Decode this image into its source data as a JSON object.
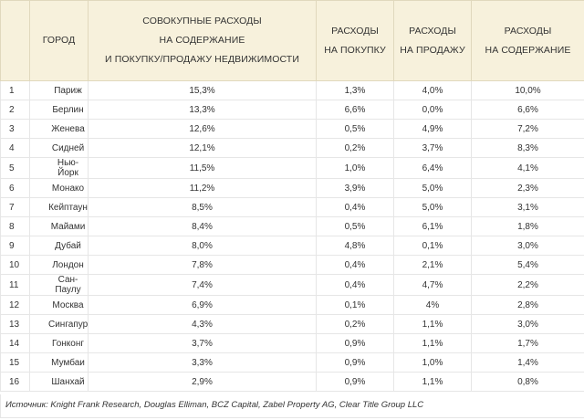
{
  "headers": {
    "num": "",
    "city": "ГОРОД",
    "total_lines": [
      "СОВОКУПНЫЕ РАСХОДЫ",
      "НА СОДЕРЖАНИЕ",
      "И ПОКУПКУ/ПРОДАЖУ НЕДВИЖИМОСТИ"
    ],
    "buy_lines": [
      "РАСХОДЫ",
      "НА ПОКУПКУ"
    ],
    "sell_lines": [
      "РАСХОДЫ",
      "НА ПРОДАЖУ"
    ],
    "maint_lines": [
      "РАСХОДЫ",
      "НА СОДЕРЖАНИЕ"
    ]
  },
  "rows": [
    {
      "num": "1",
      "city": "Париж",
      "total": "15,3%",
      "buy": "1,3%",
      "sell": "4,0%",
      "maint": "10,0%"
    },
    {
      "num": "2",
      "city": "Берлин",
      "total": "13,3%",
      "buy": "6,6%",
      "sell": "0,0%",
      "maint": "6,6%"
    },
    {
      "num": "3",
      "city": "Женева",
      "total": "12,6%",
      "buy": "0,5%",
      "sell": "4,9%",
      "maint": "7,2%"
    },
    {
      "num": "4",
      "city": "Сидней",
      "total": "12,1%",
      "buy": "0,2%",
      "sell": "3,7%",
      "maint": "8,3%"
    },
    {
      "num": "5",
      "city": "Нью-Йорк",
      "total": "11,5%",
      "buy": "1,0%",
      "sell": "6,4%",
      "maint": "4,1%"
    },
    {
      "num": "6",
      "city": "Монако",
      "total": "11,2%",
      "buy": "3,9%",
      "sell": "5,0%",
      "maint": "2,3%"
    },
    {
      "num": "7",
      "city": "Кейптаун",
      "total": "8,5%",
      "buy": "0,4%",
      "sell": "5,0%",
      "maint": "3,1%"
    },
    {
      "num": "8",
      "city": "Майами",
      "total": "8,4%",
      "buy": "0,5%",
      "sell": "6,1%",
      "maint": "1,8%"
    },
    {
      "num": "9",
      "city": "Дубай",
      "total": "8,0%",
      "buy": "4,8%",
      "sell": "0,1%",
      "maint": "3,0%"
    },
    {
      "num": "10",
      "city": "Лондон",
      "total": "7,8%",
      "buy": "0,4%",
      "sell": "2,1%",
      "maint": "5,4%"
    },
    {
      "num": "11",
      "city": "Сан-Паулу",
      "total": "7,4%",
      "buy": "0,4%",
      "sell": "4,7%",
      "maint": "2,2%"
    },
    {
      "num": "12",
      "city": "Москва",
      "total": "6,9%",
      "buy": "0,1%",
      "sell": "4%",
      "maint": "2,8%"
    },
    {
      "num": "13",
      "city": "Сингапур",
      "total": "4,3%",
      "buy": "0,2%",
      "sell": "1,1%",
      "maint": "3,0%"
    },
    {
      "num": "14",
      "city": "Гонконг",
      "total": "3,7%",
      "buy": "0,9%",
      "sell": "1,1%",
      "maint": "1,7%"
    },
    {
      "num": "15",
      "city": "Мумбаи",
      "total": "3,3%",
      "buy": "0,9%",
      "sell": "1,0%",
      "maint": "1,4%"
    },
    {
      "num": "16",
      "city": "Шанхай",
      "total": "2,9%",
      "buy": "0,9%",
      "sell": "1,1%",
      "maint": "0,8%"
    }
  ],
  "source": "Источник: Knight Frank Research, Douglas Elliman, BCZ Capital, Zabel Property AG, Clear Title Group LLC"
}
